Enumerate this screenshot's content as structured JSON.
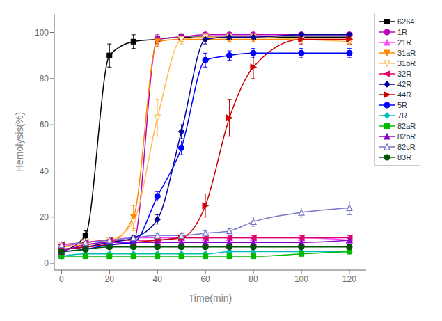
{
  "chart_data": {
    "type": "line",
    "xlabel": "Time(min)",
    "ylabel": "Hemolysis(%)",
    "xlim": [
      -3,
      127
    ],
    "ylim": [
      -3,
      108
    ],
    "xticks": [
      0,
      20,
      40,
      60,
      80,
      100,
      120
    ],
    "yticks": [
      0,
      20,
      40,
      60,
      80,
      100
    ],
    "grid": false,
    "legend": "right",
    "x": [
      0,
      10,
      20,
      30,
      40,
      50,
      60,
      70,
      80,
      100,
      120
    ],
    "series": [
      {
        "name": "6264",
        "color": "#000000",
        "marker": "square",
        "values": [
          5,
          12,
          90,
          96,
          97,
          98,
          98,
          98,
          98,
          98,
          98
        ],
        "yerr": [
          1,
          2,
          5,
          3,
          1,
          1,
          1,
          1,
          1,
          1,
          1
        ]
      },
      {
        "name": "1R",
        "color": "#bb00bb",
        "marker": "circle",
        "values": [
          6,
          7,
          8,
          9,
          97,
          98,
          99,
          99,
          99,
          99,
          99
        ],
        "yerr": [
          1,
          1,
          1,
          1,
          2,
          1,
          1,
          1,
          1,
          1,
          1
        ]
      },
      {
        "name": "21R",
        "color": "#ff44ff",
        "marker": "triangle-up",
        "values": [
          7,
          9,
          10,
          11,
          11,
          11,
          11,
          11,
          11,
          11,
          10
        ],
        "yerr": [
          1,
          1,
          1,
          1,
          1,
          1,
          1,
          1,
          1,
          1,
          1
        ]
      },
      {
        "name": "31aR",
        "color": "#ff8800",
        "marker": "triangle-down",
        "values": [
          7,
          8,
          9,
          20,
          96,
          97,
          97,
          97,
          97,
          97,
          97
        ],
        "yerr": [
          1,
          1,
          1,
          5,
          2,
          1,
          1,
          1,
          1,
          1,
          1
        ]
      },
      {
        "name": "31bR",
        "color": "#ffbb55",
        "marker": "triangle-down-open",
        "values": [
          8,
          9,
          10,
          18,
          63,
          97,
          98,
          98,
          98,
          97,
          96
        ],
        "yerr": [
          1,
          1,
          1,
          4,
          8,
          2,
          1,
          1,
          1,
          1,
          1
        ]
      },
      {
        "name": "32R",
        "color": "#dd0066",
        "marker": "triangle-left",
        "values": [
          8,
          9,
          10,
          10,
          10,
          11,
          11,
          11,
          11,
          11,
          11
        ],
        "yerr": [
          1,
          1,
          1,
          1,
          1,
          1,
          1,
          1,
          1,
          1,
          1
        ]
      },
      {
        "name": "42R",
        "color": "#000099",
        "marker": "diamond",
        "values": [
          6,
          7,
          9,
          11,
          19,
          57,
          97,
          98,
          98,
          99,
          99
        ],
        "yerr": [
          1,
          1,
          1,
          1,
          2,
          3,
          2,
          1,
          1,
          1,
          1
        ]
      },
      {
        "name": "44R",
        "color": "#cc0000",
        "marker": "triangle-right",
        "values": [
          6,
          7,
          8,
          9,
          10,
          11,
          25,
          63,
          85,
          97,
          97
        ],
        "yerr": [
          1,
          1,
          1,
          1,
          1,
          2,
          5,
          8,
          5,
          2,
          2
        ]
      },
      {
        "name": "5R",
        "color": "#0000ff",
        "marker": "circle",
        "values": [
          5,
          6,
          8,
          9,
          29,
          50,
          88,
          90,
          91,
          91,
          91
        ],
        "yerr": [
          1,
          1,
          1,
          1,
          2,
          3,
          3,
          2,
          2,
          2,
          2
        ]
      },
      {
        "name": "7R",
        "color": "#00bbbb",
        "marker": "diamond",
        "values": [
          3,
          4,
          4,
          4,
          4,
          4,
          4,
          5,
          5,
          5,
          5
        ],
        "yerr": [
          0.5,
          0.5,
          0.5,
          0.5,
          0.5,
          0.5,
          0.5,
          0.5,
          0.5,
          0.5,
          0.5
        ]
      },
      {
        "name": "82aR",
        "color": "#00bb00",
        "marker": "square",
        "values": [
          3,
          3,
          3,
          3,
          3,
          3,
          3,
          3,
          3,
          4,
          5
        ],
        "yerr": [
          0.5,
          0.5,
          0.5,
          0.5,
          0.5,
          0.5,
          0.5,
          0.5,
          0.5,
          0.5,
          0.5
        ]
      },
      {
        "name": "82bR",
        "color": "#8800cc",
        "marker": "triangle-up",
        "values": [
          5,
          8,
          9,
          9,
          9,
          9,
          9,
          9,
          9,
          9,
          10
        ],
        "yerr": [
          1,
          1,
          1,
          1,
          1,
          1,
          1,
          1,
          1,
          1,
          1
        ]
      },
      {
        "name": "82cR",
        "color": "#7777cc",
        "marker": "triangle-up-open",
        "values": [
          8,
          9,
          10,
          11,
          12,
          12,
          13,
          14,
          18,
          22,
          24
        ],
        "yerr": [
          1,
          1,
          1,
          1,
          1,
          1,
          1,
          1,
          2,
          2,
          3
        ]
      },
      {
        "name": "83R",
        "color": "#005500",
        "marker": "circle",
        "values": [
          5,
          6,
          7,
          7,
          7,
          7,
          7,
          7,
          7,
          7,
          7
        ],
        "yerr": [
          0.5,
          0.5,
          0.5,
          0.5,
          0.5,
          0.5,
          0.5,
          0.5,
          0.5,
          0.5,
          0.5
        ]
      }
    ]
  }
}
